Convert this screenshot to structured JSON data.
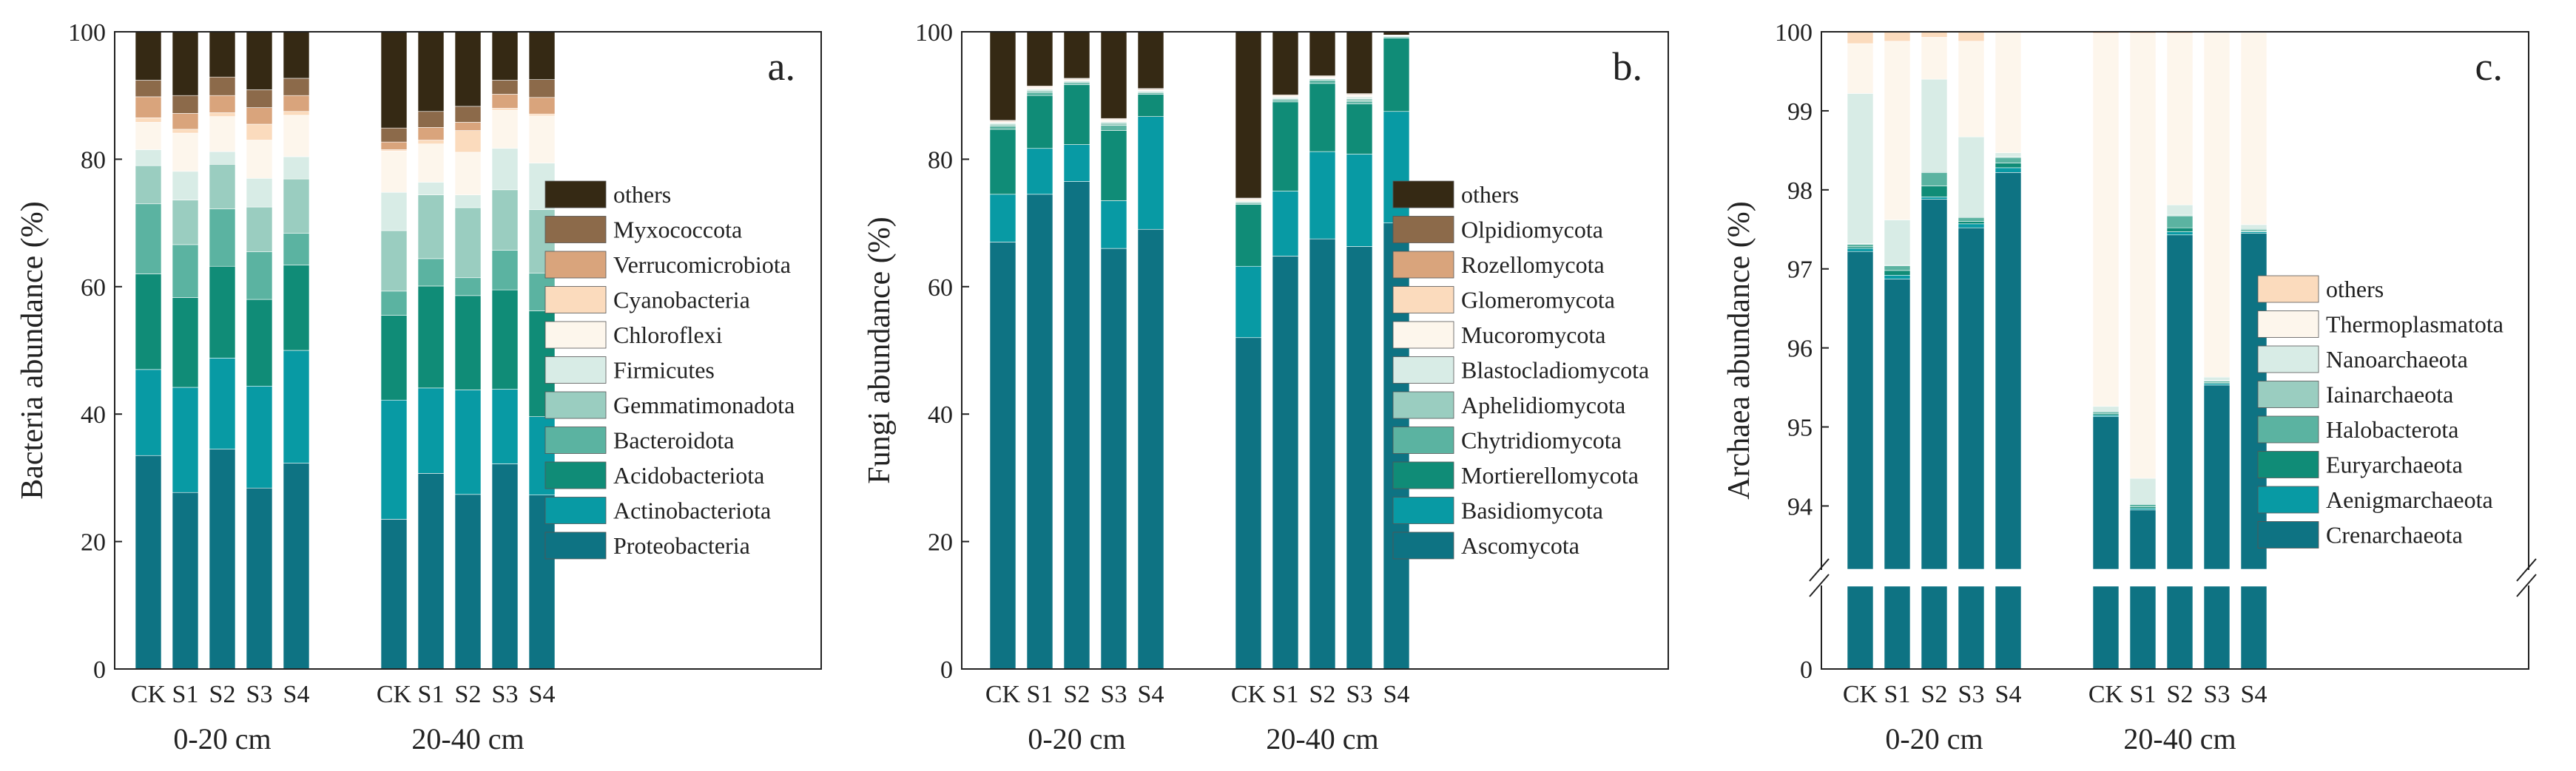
{
  "figure": {
    "group_labels": [
      "0-20 cm",
      "20-40 cm"
    ],
    "samples": [
      "CK",
      "S1",
      "S2",
      "S3",
      "S4"
    ]
  },
  "chart_data": [
    {
      "type": "bar",
      "stacked": true,
      "panel": "a.",
      "ylabel": "Bacteria abundance (%)",
      "ylim": [
        0,
        100
      ],
      "yticks": [
        "0",
        "20",
        "40",
        "60",
        "80",
        "100"
      ],
      "categories": [
        "CK",
        "S1",
        "S2",
        "S3",
        "S4",
        "CK",
        "S1",
        "S2",
        "S3",
        "S4"
      ],
      "groups": [
        "0-20 cm",
        "20-40 cm"
      ],
      "legend_position": "right",
      "series": [
        {
          "name": "Proteobacteria",
          "color": "#0e7383",
          "values": [
            33.5,
            27.7,
            34.5,
            28.4,
            32.3,
            23.5,
            30.7,
            27.4,
            32.2,
            27.3
          ]
        },
        {
          "name": "Actinobacteriota",
          "color": "#089aa4",
          "values": [
            13.5,
            16.5,
            14.3,
            16.0,
            17.7,
            18.7,
            13.4,
            16.4,
            11.7,
            12.3
          ]
        },
        {
          "name": "Acidobacteriota",
          "color": "#108c77",
          "values": [
            15.0,
            14.1,
            14.4,
            13.6,
            13.4,
            13.3,
            16.0,
            14.8,
            15.6,
            16.6
          ]
        },
        {
          "name": "Bacteroidota",
          "color": "#5bb3a1",
          "values": [
            11.0,
            8.3,
            9.0,
            7.5,
            5.0,
            3.8,
            4.3,
            2.8,
            6.2,
            5.9
          ]
        },
        {
          "name": "Gemmatimonadota",
          "color": "#9acdc0",
          "values": [
            6.0,
            7.0,
            7.0,
            7.0,
            8.5,
            9.5,
            10.0,
            11.0,
            9.5,
            10.0
          ]
        },
        {
          "name": "Firmicutes",
          "color": "#d8ece6",
          "values": [
            2.5,
            4.5,
            2.0,
            4.5,
            3.5,
            6.0,
            2.0,
            2.0,
            6.5,
            7.3
          ]
        },
        {
          "name": "Chloroflexi",
          "color": "#fdf6ec",
          "values": [
            4.3,
            6.0,
            5.5,
            6.0,
            6.5,
            6.5,
            6.0,
            6.7,
            6.0,
            7.4
          ]
        },
        {
          "name": "Cyanobacteria",
          "color": "#fbdbbd",
          "values": [
            0.7,
            0.6,
            0.6,
            2.5,
            0.6,
            0.2,
            0.6,
            3.4,
            0.3,
            0.3
          ]
        },
        {
          "name": "Verrucomicrobiota",
          "color": "#d9a47c",
          "values": [
            3.3,
            2.5,
            2.7,
            2.6,
            2.5,
            1.2,
            2.0,
            1.3,
            2.2,
            2.6
          ]
        },
        {
          "name": "Myxococcota",
          "color": "#8c6a4a",
          "values": [
            2.6,
            2.8,
            2.9,
            2.8,
            2.7,
            2.2,
            2.5,
            2.5,
            2.2,
            2.8
          ]
        },
        {
          "name": "others",
          "color": "#352914",
          "values": [
            7.6,
            10.0,
            7.1,
            9.1,
            8.3,
            15.1,
            12.5,
            11.7,
            7.6,
            7.5
          ]
        }
      ]
    },
    {
      "type": "bar",
      "stacked": true,
      "panel": "b.",
      "ylabel": "Fungi abundance (%)",
      "ylim": [
        0,
        100
      ],
      "yticks": [
        "0",
        "20",
        "40",
        "60",
        "80",
        "100"
      ],
      "categories": [
        "CK",
        "S1",
        "S2",
        "S3",
        "S4",
        "CK",
        "S1",
        "S2",
        "S3",
        "S4"
      ],
      "groups": [
        "0-20 cm",
        "20-40 cm"
      ],
      "legend_position": "right",
      "series": [
        {
          "name": "Ascomycota",
          "color": "#0e7383",
          "values": [
            67.0,
            74.5,
            76.5,
            66.0,
            69.0,
            52.0,
            64.8,
            67.5,
            66.3,
            70.0
          ]
        },
        {
          "name": "Basidiomycota",
          "color": "#089aa4",
          "values": [
            7.5,
            7.2,
            5.8,
            7.5,
            17.7,
            11.2,
            10.2,
            13.7,
            14.5,
            17.5
          ]
        },
        {
          "name": "Mortierellomycota",
          "color": "#108c77",
          "values": [
            10.2,
            8.3,
            9.4,
            11.0,
            3.5,
            9.7,
            14.0,
            10.7,
            7.9,
            11.5
          ]
        },
        {
          "name": "Chytridiomycota",
          "color": "#5bb3a1",
          "values": [
            0.5,
            0.5,
            0.3,
            0.8,
            0.2,
            0.2,
            0.3,
            0.5,
            0.4,
            0.2
          ]
        },
        {
          "name": "Aphelidiomycota",
          "color": "#9acdc0",
          "values": [
            0.3,
            0.3,
            0.2,
            0.4,
            0.2,
            0.2,
            0.2,
            0.2,
            0.4,
            0.1
          ]
        },
        {
          "name": "Blastocladiomycota",
          "color": "#d8ece6",
          "values": [
            0.2,
            0.2,
            0.1,
            0.2,
            0.1,
            0.1,
            0.2,
            0.1,
            0.3,
            0.1
          ]
        },
        {
          "name": "Mucoromycota",
          "color": "#fdf6ec",
          "values": [
            0.1,
            0.2,
            0.1,
            0.2,
            0.1,
            0.2,
            0.1,
            0.1,
            0.2,
            0.05
          ]
        },
        {
          "name": "Glomeromycota",
          "color": "#fbdbbd",
          "values": [
            0.1,
            0.1,
            0.1,
            0.1,
            0.1,
            0.1,
            0.1,
            0.1,
            0.1,
            0.05
          ]
        },
        {
          "name": "Rozellomycota",
          "color": "#d9a47c",
          "values": [
            0.1,
            0.1,
            0.1,
            0.1,
            0.1,
            0.1,
            0.1,
            0.1,
            0.1,
            0.0
          ]
        },
        {
          "name": "Olpidiomycota",
          "color": "#8c6a4a",
          "values": [
            0.1,
            0.1,
            0.1,
            0.1,
            0.1,
            0.1,
            0.1,
            0.1,
            0.1,
            0.0
          ]
        },
        {
          "name": "others",
          "color": "#352914",
          "values": [
            13.9,
            8.5,
            7.3,
            13.7,
            8.9,
            26.1,
            9.9,
            7.0,
            9.8,
            0.5
          ]
        }
      ]
    },
    {
      "type": "bar",
      "stacked": true,
      "panel": "c.",
      "ylabel": "Archaea abundance (%)",
      "ylim": [
        0,
        100
      ],
      "axis_break": {
        "lower_range": [
          0,
          93
        ],
        "upper_range": [
          93.2,
          100
        ]
      },
      "yticks": [
        "0",
        "94",
        "95",
        "96",
        "97",
        "98",
        "99",
        "100"
      ],
      "categories": [
        "CK",
        "S1",
        "S2",
        "S3",
        "S4",
        "CK",
        "S1",
        "S2",
        "S3",
        "S4"
      ],
      "groups": [
        "0-20 cm",
        "20-40 cm"
      ],
      "legend_position": "right",
      "series": [
        {
          "name": "Crenarchaeota",
          "color": "#0e7383",
          "values": [
            97.22,
            96.87,
            97.88,
            97.52,
            98.22,
            95.13,
            93.95,
            97.43,
            95.53,
            97.45
          ]
        },
        {
          "name": "Aenigmarchaeota",
          "color": "#089aa4",
          "values": [
            0.04,
            0.05,
            0.03,
            0.05,
            0.06,
            0.02,
            0.02,
            0.04,
            0.02,
            0.02
          ]
        },
        {
          "name": "Euryarchaeota",
          "color": "#108c77",
          "values": [
            0.02,
            0.06,
            0.14,
            0.03,
            0.06,
            0.02,
            0.02,
            0.05,
            0.01,
            0.01
          ]
        },
        {
          "name": "Halobacterota",
          "color": "#5bb3a1",
          "values": [
            0.03,
            0.06,
            0.17,
            0.05,
            0.07,
            0.02,
            0.03,
            0.15,
            0.02,
            0.02
          ]
        },
        {
          "name": "Iainarchaeota",
          "color": "#9acdc0",
          "values": [
            0.01,
            0.01,
            0.01,
            0.01,
            0.01,
            0.01,
            0.01,
            0.01,
            0.01,
            0.01
          ]
        },
        {
          "name": "Nanoarchaeota",
          "color": "#d8ece6",
          "values": [
            1.9,
            0.57,
            1.17,
            1.01,
            0.05,
            0.06,
            0.32,
            0.13,
            0.04,
            0.05
          ]
        },
        {
          "name": "Thermoplasmatota",
          "color": "#fdf6ec",
          "values": [
            0.63,
            2.26,
            0.53,
            1.21,
            1.52,
            4.72,
            5.63,
            2.17,
            4.36,
            2.43
          ]
        },
        {
          "name": "others",
          "color": "#fbdbbd",
          "values": [
            0.15,
            0.12,
            0.07,
            0.12,
            0.01,
            0.02,
            0.02,
            0.02,
            0.01,
            0.01
          ]
        }
      ]
    }
  ]
}
